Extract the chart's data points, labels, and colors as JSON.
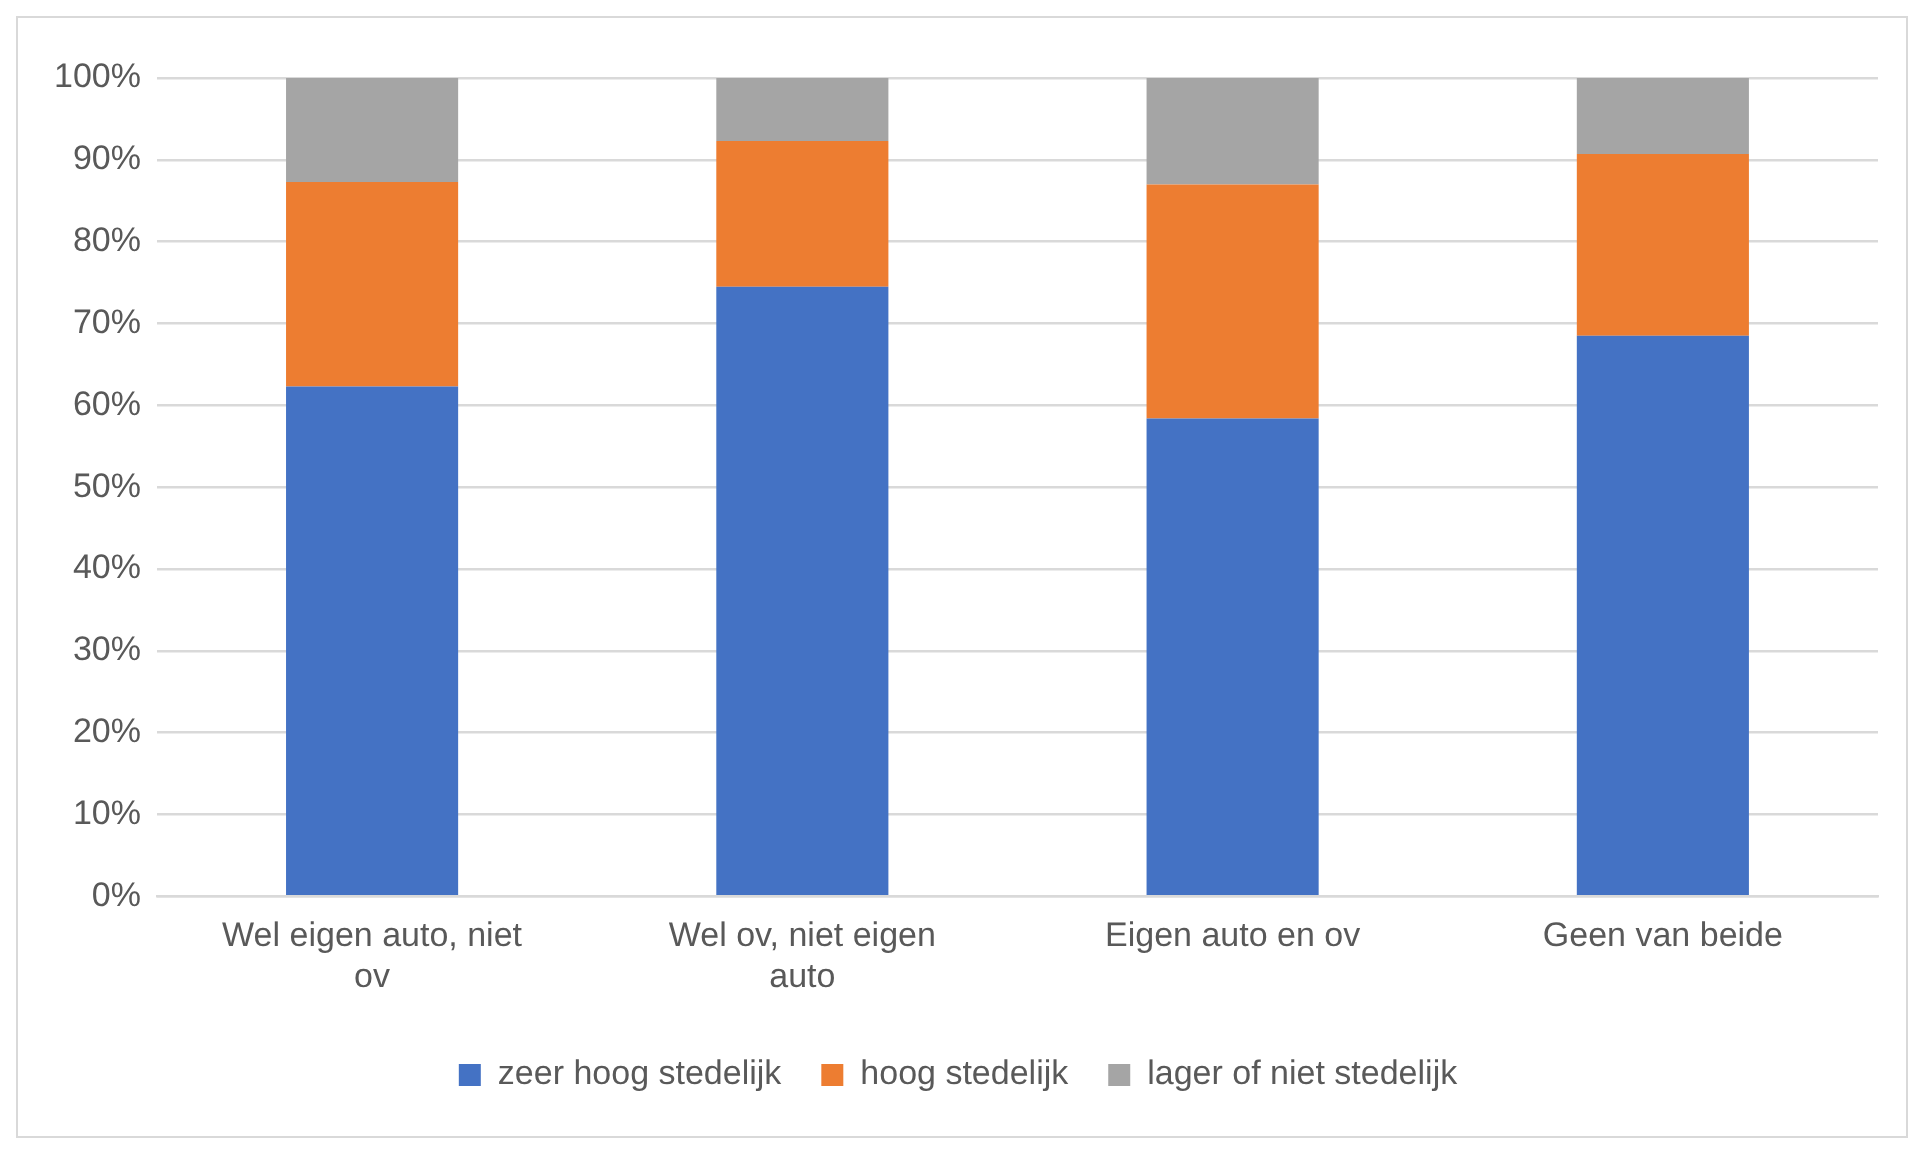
{
  "chart_data": {
    "type": "bar",
    "stacked": true,
    "categories": [
      "Wel eigen auto, niet ov",
      "Wel ov, niet eigen auto",
      "Eigen auto en ov",
      "Geen van beide"
    ],
    "series": [
      {
        "name": "zeer hoog stedelijk",
        "color": "#4472c4",
        "values": [
          62.3,
          74.5,
          58.4,
          68.5
        ]
      },
      {
        "name": "hoog stedelijk",
        "color": "#ed7d31",
        "values": [
          25.0,
          17.8,
          28.6,
          22.2
        ]
      },
      {
        "name": "lager of niet stedelijk",
        "color": "#a5a5a5",
        "values": [
          12.7,
          7.7,
          13.0,
          9.3
        ]
      }
    ],
    "ylim": [
      0,
      100
    ],
    "yticks": [
      {
        "value": 0,
        "label": "0%"
      },
      {
        "value": 10,
        "label": "10%"
      },
      {
        "value": 20,
        "label": "20%"
      },
      {
        "value": 30,
        "label": "30%"
      },
      {
        "value": 40,
        "label": "40%"
      },
      {
        "value": 50,
        "label": "50%"
      },
      {
        "value": 60,
        "label": "60%"
      },
      {
        "value": 70,
        "label": "70%"
      },
      {
        "value": 80,
        "label": "80%"
      },
      {
        "value": 90,
        "label": "90%"
      },
      {
        "value": 100,
        "label": "100%"
      }
    ],
    "grid": "y",
    "legend": "bottom"
  }
}
